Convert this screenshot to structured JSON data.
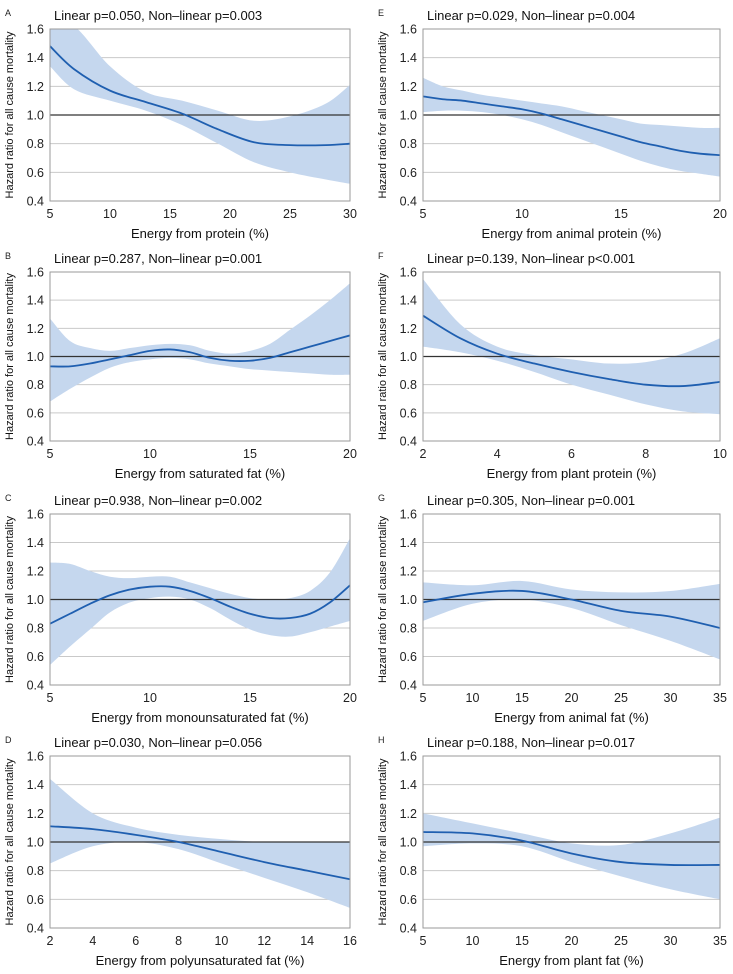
{
  "figure": {
    "ylabel": "Hazard ratio for all cause mortality",
    "y_ticks": [
      "0.4",
      "0.6",
      "0.8",
      "1.0",
      "1.2",
      "1.4",
      "1.6"
    ],
    "colors": {
      "line": "#1f5fb0",
      "band": "#c5d7ee",
      "grid": "#c9c9c9",
      "ref": "#333333",
      "frame": "#9a9a9a"
    }
  },
  "chart_data": [
    {
      "type": "line",
      "panel": "A",
      "title": "Linear p=0.050, Non–linear p=0.003",
      "xlabel": "Energy from protein (%)",
      "ylabel": "Hazard ratio for all cause mortality",
      "xlim": [
        5,
        30
      ],
      "ylim": [
        0.4,
        1.6
      ],
      "x_ticks": [
        "5",
        "10",
        "15",
        "20",
        "25",
        "30"
      ],
      "reference_line": 1.0,
      "x": [
        5,
        7,
        10,
        13,
        16,
        19,
        22,
        25,
        28,
        30
      ],
      "hr": [
        1.48,
        1.32,
        1.17,
        1.09,
        1.01,
        0.9,
        0.81,
        0.79,
        0.79,
        0.8
      ],
      "ci_low": [
        1.34,
        1.18,
        1.1,
        1.03,
        0.93,
        0.8,
        0.67,
        0.6,
        0.55,
        0.52
      ],
      "ci_high": [
        1.62,
        1.62,
        1.34,
        1.16,
        1.1,
        1.03,
        0.96,
        0.99,
        1.08,
        1.21
      ]
    },
    {
      "type": "line",
      "panel": "B",
      "title": "Linear p=0.287, Non–linear p=0.001",
      "xlabel": "Energy from saturated fat (%)",
      "ylabel": "Hazard ratio for all cause mortality",
      "xlim": [
        5,
        20
      ],
      "ylim": [
        0.4,
        1.6
      ],
      "x_ticks": [
        "5",
        "10",
        "15",
        "20"
      ],
      "reference_line": 1.0,
      "x": [
        5,
        6,
        7,
        8,
        9,
        10,
        11,
        12,
        13,
        14,
        15,
        16,
        17,
        18,
        19,
        20
      ],
      "hr": [
        0.93,
        0.93,
        0.95,
        0.98,
        1.01,
        1.04,
        1.05,
        1.03,
        0.99,
        0.97,
        0.97,
        0.99,
        1.03,
        1.07,
        1.11,
        1.15
      ],
      "ci_low": [
        0.68,
        0.77,
        0.85,
        0.92,
        0.96,
        0.98,
        0.99,
        0.98,
        0.95,
        0.93,
        0.91,
        0.9,
        0.89,
        0.88,
        0.87,
        0.87
      ],
      "ci_high": [
        1.27,
        1.11,
        1.06,
        1.04,
        1.06,
        1.08,
        1.09,
        1.08,
        1.04,
        1.02,
        1.04,
        1.09,
        1.19,
        1.29,
        1.4,
        1.52
      ]
    },
    {
      "type": "line",
      "panel": "C",
      "title": "Linear p=0.938, Non–linear p=0.002",
      "xlabel": "Energy from monounsaturated fat (%)",
      "ylabel": "Hazard ratio for all cause mortality",
      "xlim": [
        5,
        20
      ],
      "ylim": [
        0.4,
        1.6
      ],
      "x_ticks": [
        "5",
        "10",
        "15",
        "20"
      ],
      "reference_line": 1.0,
      "x": [
        5,
        6,
        7,
        8,
        9,
        10,
        11,
        12,
        13,
        14,
        15,
        16,
        17,
        18,
        19,
        20
      ],
      "hr": [
        0.83,
        0.9,
        0.97,
        1.03,
        1.07,
        1.09,
        1.09,
        1.06,
        1.01,
        0.95,
        0.9,
        0.87,
        0.87,
        0.9,
        0.98,
        1.1
      ],
      "ci_low": [
        0.54,
        0.67,
        0.79,
        0.91,
        0.98,
        1.01,
        1.02,
        1.0,
        0.94,
        0.86,
        0.79,
        0.75,
        0.74,
        0.77,
        0.81,
        0.85
      ],
      "ci_high": [
        1.26,
        1.25,
        1.2,
        1.16,
        1.15,
        1.16,
        1.16,
        1.12,
        1.08,
        1.04,
        1.01,
        1.0,
        1.01,
        1.06,
        1.19,
        1.43
      ]
    },
    {
      "type": "line",
      "panel": "D",
      "title": "Linear p=0.030, Non–linear p=0.056",
      "xlabel": "Energy from polyunsaturated fat (%)",
      "ylabel": "Hazard ratio for all cause mortality",
      "xlim": [
        2,
        16
      ],
      "ylim": [
        0.4,
        1.6
      ],
      "x_ticks": [
        "2",
        "4",
        "6",
        "8",
        "10",
        "12",
        "14",
        "16"
      ],
      "reference_line": 1.0,
      "x": [
        2,
        4,
        6,
        8,
        10,
        12,
        14,
        16
      ],
      "hr": [
        1.11,
        1.09,
        1.05,
        1.0,
        0.93,
        0.86,
        0.8,
        0.74
      ],
      "ci_low": [
        0.85,
        0.97,
        1.0,
        0.95,
        0.85,
        0.75,
        0.65,
        0.54
      ],
      "ci_high": [
        1.44,
        1.2,
        1.1,
        1.05,
        1.02,
        1.0,
        1.0,
        1.0
      ]
    },
    {
      "type": "line",
      "panel": "E",
      "title": "Linear p=0.029, Non–linear p=0.004",
      "xlabel": "Energy from animal protein (%)",
      "ylabel": "Hazard ratio for all cause mortality",
      "xlim": [
        5,
        20
      ],
      "ylim": [
        0.4,
        1.6
      ],
      "x_ticks": [
        "5",
        "10",
        "15",
        "20"
      ],
      "reference_line": 1.0,
      "x": [
        5,
        6,
        7,
        8,
        9,
        10,
        11,
        12,
        13,
        14,
        15,
        16,
        17,
        18,
        19,
        20
      ],
      "hr": [
        1.13,
        1.11,
        1.1,
        1.08,
        1.06,
        1.04,
        1.01,
        0.97,
        0.93,
        0.89,
        0.85,
        0.81,
        0.78,
        0.75,
        0.73,
        0.72
      ],
      "ci_low": [
        1.02,
        1.03,
        1.03,
        1.02,
        1.0,
        0.97,
        0.93,
        0.88,
        0.83,
        0.78,
        0.73,
        0.68,
        0.64,
        0.61,
        0.59,
        0.57
      ],
      "ci_high": [
        1.26,
        1.2,
        1.17,
        1.14,
        1.12,
        1.1,
        1.08,
        1.06,
        1.03,
        1.0,
        0.97,
        0.94,
        0.93,
        0.92,
        0.91,
        0.91
      ]
    },
    {
      "type": "line",
      "panel": "F",
      "title": "Linear p=0.139, Non–linear p<0.001",
      "xlabel": "Energy from plant protein (%)",
      "ylabel": "Hazard ratio for all cause mortality",
      "xlim": [
        2,
        10
      ],
      "ylim": [
        0.4,
        1.6
      ],
      "x_ticks": [
        "2",
        "4",
        "6",
        "8",
        "10"
      ],
      "reference_line": 1.0,
      "x": [
        2,
        3,
        4,
        5,
        6,
        7,
        8,
        9,
        10
      ],
      "hr": [
        1.29,
        1.13,
        1.02,
        0.95,
        0.89,
        0.84,
        0.8,
        0.79,
        0.82
      ],
      "ci_low": [
        1.07,
        1.03,
        0.97,
        0.89,
        0.8,
        0.73,
        0.66,
        0.61,
        0.59
      ],
      "ci_high": [
        1.55,
        1.23,
        1.07,
        1.01,
        0.98,
        0.95,
        0.96,
        1.02,
        1.13
      ]
    },
    {
      "type": "line",
      "panel": "G",
      "title": "Linear p=0.305, Non–linear p=0.001",
      "xlabel": "Energy from animal fat (%)",
      "ylabel": "Hazard ratio for all cause mortality",
      "xlim": [
        5,
        35
      ],
      "ylim": [
        0.4,
        1.6
      ],
      "x_ticks": [
        "5",
        "10",
        "15",
        "20",
        "25",
        "30",
        "35"
      ],
      "reference_line": 1.0,
      "x": [
        5,
        10,
        15,
        20,
        25,
        30,
        35
      ],
      "hr": [
        0.98,
        1.04,
        1.06,
        1.0,
        0.92,
        0.88,
        0.8
      ],
      "ci_low": [
        0.85,
        0.97,
        1.0,
        0.94,
        0.82,
        0.71,
        0.58
      ],
      "ci_high": [
        1.12,
        1.1,
        1.13,
        1.07,
        1.05,
        1.06,
        1.11
      ]
    },
    {
      "type": "line",
      "panel": "H",
      "title": "Linear p=0.188, Non–linear p=0.017",
      "xlabel": "Energy from plant fat (%)",
      "ylabel": "Hazard ratio for all cause mortality",
      "xlim": [
        5,
        35
      ],
      "ylim": [
        0.4,
        1.6
      ],
      "x_ticks": [
        "5",
        "10",
        "15",
        "20",
        "25",
        "30",
        "35"
      ],
      "reference_line": 1.0,
      "x": [
        5,
        10,
        15,
        20,
        25,
        30,
        35
      ],
      "hr": [
        1.07,
        1.06,
        1.01,
        0.92,
        0.86,
        0.84,
        0.84
      ],
      "ci_low": [
        0.97,
        0.99,
        0.97,
        0.86,
        0.76,
        0.67,
        0.6
      ],
      "ci_high": [
        1.2,
        1.13,
        1.06,
        0.99,
        0.98,
        1.06,
        1.17
      ]
    }
  ]
}
